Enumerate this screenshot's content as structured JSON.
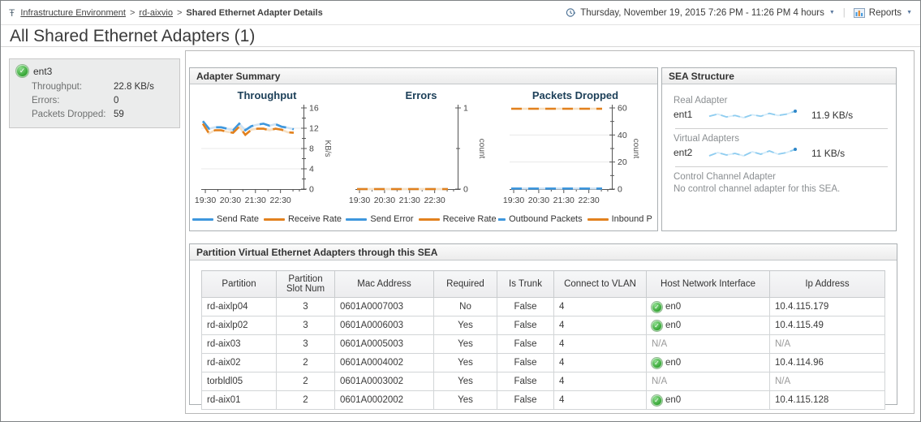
{
  "header": {
    "breadcrumb": {
      "icon": "Ŧ",
      "separator": ">",
      "items": [
        "Infrastructure Environment",
        "rd-aixvio",
        "Shared Ethernet Adapter Details"
      ]
    },
    "time_range": "Thursday, November 19, 2015 7:26 PM - 11:26 PM 4 hours",
    "reports_label": "Reports"
  },
  "page_title": "All Shared Ethernet Adapters (1)",
  "adapter_tile": {
    "name": "ent3",
    "rows": [
      {
        "label": "Throughput:",
        "value": "22.8 KB/s"
      },
      {
        "label": "Errors:",
        "value": "0"
      },
      {
        "label": "Packets Dropped:",
        "value": "59"
      }
    ]
  },
  "adapter_summary_title": "Adapter Summary",
  "chart_data": [
    {
      "type": "line",
      "title": "Throughput",
      "unit": "KB/s",
      "ylim": [
        0,
        16
      ],
      "yticks": [
        {
          "v": 0,
          "label": "0"
        },
        {
          "v": 4,
          "label": "4"
        },
        {
          "v": 8,
          "label": "8"
        },
        {
          "v": 12,
          "label": "12"
        },
        {
          "v": 16,
          "label": "16"
        }
      ],
      "yminor": [
        2,
        6,
        10,
        14
      ],
      "grid": [
        4,
        8,
        12
      ],
      "x_labels": [
        {
          "f": 0.04,
          "label": "19:30"
        },
        {
          "f": 0.285,
          "label": "20:30"
        },
        {
          "f": 0.53,
          "label": "21:30"
        },
        {
          "f": 0.775,
          "label": "22:30"
        }
      ],
      "xminor": [
        0.1625,
        0.4075,
        0.6525,
        0.8975,
        0.96
      ],
      "series": [
        {
          "name": "Send Rate",
          "color": "#3e97dd",
          "pale": "#cfe3f4",
          "values": [
            13.4,
            11.9,
            12.2,
            12.2,
            11.9,
            11.6,
            12.9,
            11.6,
            12.4,
            12.7,
            12.9,
            12.5,
            12.8,
            12.3,
            12.1,
            11.8
          ]
        },
        {
          "name": "Receive Rate",
          "color": "#e2811e",
          "pale": "#f6e0c4",
          "values": [
            12.9,
            11.0,
            11.6,
            11.6,
            11.3,
            11.1,
            12.3,
            10.7,
            11.7,
            11.9,
            11.9,
            11.6,
            11.9,
            11.7,
            11.2,
            11.1
          ]
        }
      ]
    },
    {
      "type": "line",
      "title": "Errors",
      "unit": "count",
      "ylim": [
        0,
        1
      ],
      "yticks": [
        {
          "v": 0,
          "label": "0"
        },
        {
          "v": 1,
          "label": "1"
        }
      ],
      "yminor": [
        0.5
      ],
      "grid": [],
      "x_labels": [
        {
          "f": 0.04,
          "label": "19:30"
        },
        {
          "f": 0.285,
          "label": "20:30"
        },
        {
          "f": 0.53,
          "label": "21:30"
        },
        {
          "f": 0.775,
          "label": "22:30"
        }
      ],
      "xminor": [
        0.1625,
        0.4075,
        0.6525,
        0.8975,
        0.96
      ],
      "series": [
        {
          "name": "Send Error",
          "color": "#3e97dd",
          "pale": "#cfe3f4",
          "values": [
            0,
            0,
            0,
            0,
            0,
            0,
            0,
            0,
            0,
            0,
            0,
            0,
            0,
            0,
            0,
            0
          ]
        },
        {
          "name": "Receive Rate",
          "color": "#e2811e",
          "pale": "#f6e0c4",
          "values": [
            0,
            0,
            0,
            0,
            0,
            0,
            0,
            0,
            0,
            0,
            0,
            0,
            0,
            0,
            0,
            0
          ]
        }
      ]
    },
    {
      "type": "line",
      "title": "Packets Dropped",
      "unit": "count",
      "ylim": [
        0,
        60
      ],
      "yticks": [
        {
          "v": 0,
          "label": "0"
        },
        {
          "v": 20,
          "label": "20"
        },
        {
          "v": 40,
          "label": "40"
        },
        {
          "v": 60,
          "label": "60"
        }
      ],
      "yminor": [
        10,
        30,
        50
      ],
      "grid": [
        20,
        40
      ],
      "x_labels": [
        {
          "f": 0.04,
          "label": "19:30"
        },
        {
          "f": 0.285,
          "label": "20:30"
        },
        {
          "f": 0.53,
          "label": "21:30"
        },
        {
          "f": 0.775,
          "label": "22:30"
        }
      ],
      "xminor": [
        0.1625,
        0.4075,
        0.6525,
        0.8975,
        0.96
      ],
      "series": [
        {
          "name": "Outbound Packets",
          "color": "#3e97dd",
          "pale": "#cfe3f4",
          "values": [
            0.4,
            0.4,
            0.4,
            0.4,
            0.4,
            0.4,
            0.4,
            0.4,
            0.4,
            0.4,
            0.4,
            0.4,
            0.4,
            0.4,
            0.4,
            0.4
          ]
        },
        {
          "name": "Inbound Pack",
          "color": "#e2811e",
          "pale": "#f6e0c4",
          "values": [
            59.4,
            59.4,
            59.4,
            59.4,
            59.4,
            59.4,
            59.4,
            59.4,
            59.4,
            59.4,
            59.4,
            59.4,
            59.4,
            59.4,
            59.4,
            59.4
          ]
        }
      ]
    }
  ],
  "sea_structure": {
    "title": "SEA Structure",
    "sections": [
      {
        "label": "Real Adapter",
        "adapter": "ent1",
        "value": "11.9 KB/s",
        "spark": [
          11.6,
          11.9,
          11.5,
          11.7,
          11.4,
          11.8,
          11.6,
          12.0,
          11.7,
          11.9,
          12.3
        ]
      },
      {
        "label": "Virtual Adapters",
        "adapter": "ent2",
        "value": "11 KB/s",
        "spark": [
          10.8,
          11.2,
          10.9,
          11.1,
          10.8,
          11.3,
          11.0,
          11.4,
          11.0,
          11.2,
          11.6
        ]
      },
      {
        "label": "Control Channel Adapter",
        "message": "No control channel adapter for this SEA."
      }
    ]
  },
  "partition_table": {
    "title": "Partition Virtual Ethernet Adapters through this SEA",
    "columns": [
      {
        "key": "partition",
        "label": "Partition",
        "width": 92,
        "align": "left"
      },
      {
        "key": "slot",
        "label": "Partition Slot Num",
        "width": 72,
        "align": "center"
      },
      {
        "key": "mac",
        "label": "Mac Address",
        "width": 122,
        "align": "left"
      },
      {
        "key": "required",
        "label": "Required",
        "width": 78,
        "align": "center"
      },
      {
        "key": "trunk",
        "label": "Is Trunk",
        "width": 70,
        "align": "center"
      },
      {
        "key": "vlan",
        "label": "Connect to VLAN",
        "width": 114,
        "align": "left"
      },
      {
        "key": "host",
        "label": "Host Network Interface",
        "width": 152,
        "align": "left"
      },
      {
        "key": "ip",
        "label": "Ip Address",
        "width": 142,
        "align": "left"
      }
    ],
    "rows": [
      {
        "partition": "rd-aixlp04",
        "slot": "3",
        "mac": "0601A0007003",
        "required": "No",
        "trunk": "False",
        "vlan": "4",
        "host": "en0",
        "host_ok": true,
        "ip": "10.4.115.179"
      },
      {
        "partition": "rd-aixlp02",
        "slot": "3",
        "mac": "0601A0006003",
        "required": "Yes",
        "trunk": "False",
        "vlan": "4",
        "host": "en0",
        "host_ok": true,
        "ip": "10.4.115.49"
      },
      {
        "partition": "rd-aix03",
        "slot": "3",
        "mac": "0601A0005003",
        "required": "Yes",
        "trunk": "False",
        "vlan": "4",
        "host": "N/A",
        "host_ok": false,
        "ip": "N/A"
      },
      {
        "partition": "rd-aix02",
        "slot": "2",
        "mac": "0601A0004002",
        "required": "Yes",
        "trunk": "False",
        "vlan": "4",
        "host": "en0",
        "host_ok": true,
        "ip": "10.4.114.96"
      },
      {
        "partition": "torbldl05",
        "slot": "2",
        "mac": "0601A0003002",
        "required": "Yes",
        "trunk": "False",
        "vlan": "4",
        "host": "N/A",
        "host_ok": false,
        "ip": "N/A"
      },
      {
        "partition": "rd-aix01",
        "slot": "2",
        "mac": "0601A0002002",
        "required": "Yes",
        "trunk": "False",
        "vlan": "4",
        "host": "en0",
        "host_ok": true,
        "ip": "10.4.115.128"
      }
    ]
  },
  "icons": {
    "ok_check": "✓",
    "caret": "▼"
  },
  "colors": {
    "line_blue": "#3e97dd",
    "line_orange": "#e2811e",
    "spark_blue": "#8fcdf0",
    "spark_dot": "#2e86c8",
    "status_green": "#2da02c"
  }
}
